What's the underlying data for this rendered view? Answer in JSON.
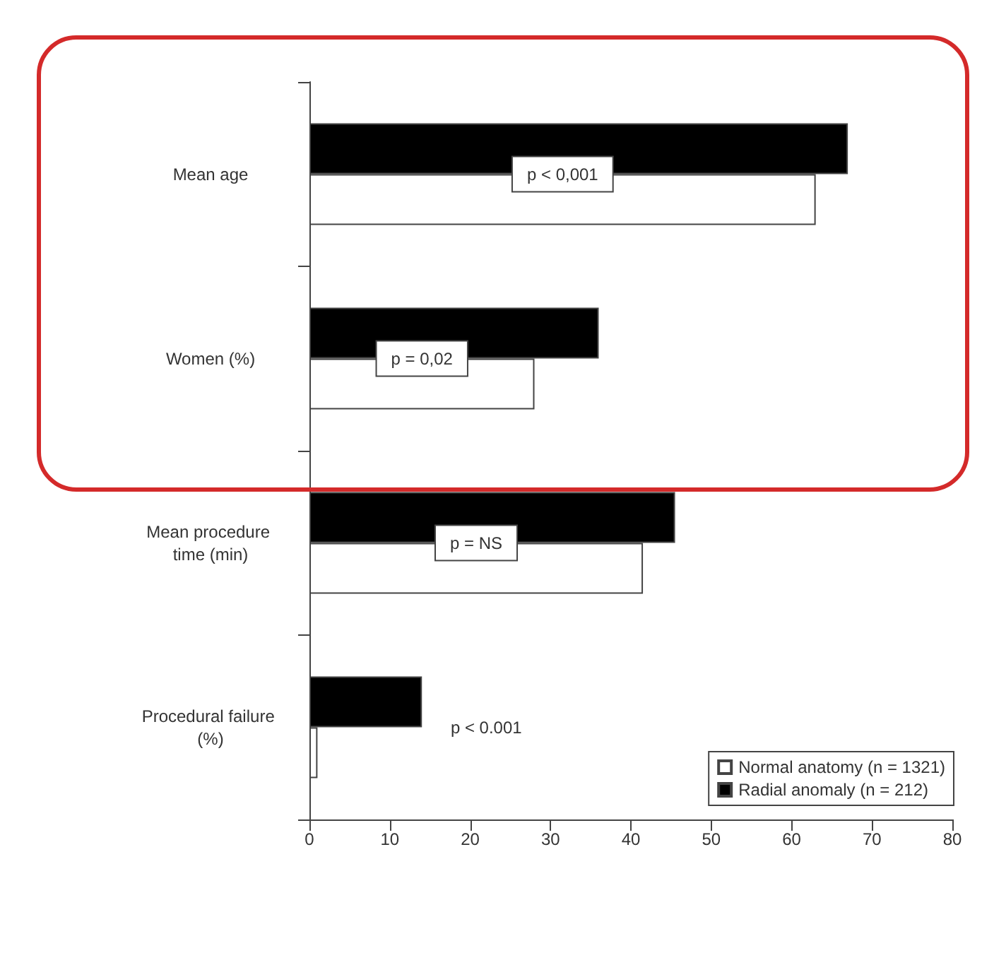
{
  "chart_data": {
    "type": "bar",
    "orientation": "horizontal",
    "categories": [
      "Mean age",
      "Women (%)",
      "Mean procedure time (min)",
      "Procedural failure (%)"
    ],
    "series": [
      {
        "name": "Normal anatomy (n = 1321)",
        "color": "#ffffff",
        "values": [
          63,
          28,
          41.5,
          1
        ]
      },
      {
        "name": "Radial anomaly (n = 212)",
        "color": "#000000",
        "values": [
          67,
          36,
          45.5,
          14
        ]
      }
    ],
    "xlim": [
      0,
      80
    ],
    "xticks": [
      0,
      10,
      20,
      30,
      40,
      50,
      60,
      70,
      80
    ],
    "annotations": [
      "p < 0,001",
      "p = 0,02",
      "p = NS",
      "p < 0.001"
    ],
    "legend": "bottom right",
    "grid": false
  }
}
